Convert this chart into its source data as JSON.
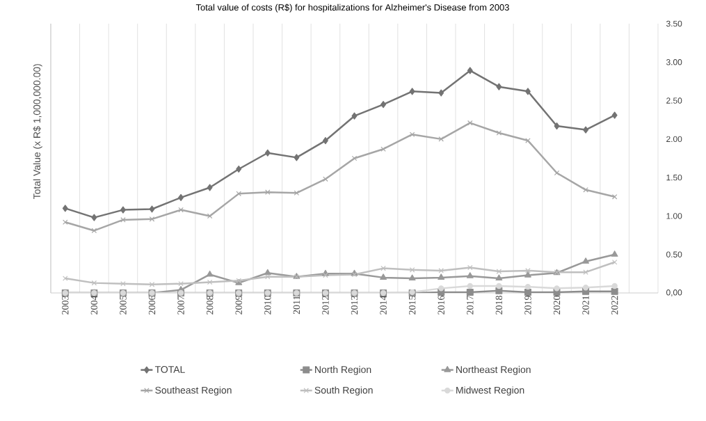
{
  "chart_data": {
    "type": "line",
    "title": "Total value of costs (R$) for hospitalizations for Alzheimer's Disease from 2003",
    "ylabel": "Total Value (x R$ 1,000,000.00)",
    "categories": [
      "2003",
      "2004",
      "2005",
      "2006",
      "2007",
      "2008",
      "2009",
      "2010",
      "2011",
      "2012",
      "2013",
      "2014",
      "2015",
      "2016",
      "2017",
      "2018",
      "2019",
      "2020",
      "2021",
      "2022"
    ],
    "series": [
      {
        "name": "TOTAL",
        "color": "#737373",
        "marker": "diamond",
        "values": [
          1.1,
          0.98,
          1.08,
          1.09,
          1.24,
          1.37,
          1.61,
          1.82,
          1.76,
          1.98,
          2.3,
          2.45,
          2.62,
          2.6,
          2.89,
          2.68,
          2.62,
          2.17,
          2.12,
          2.31
        ]
      },
      {
        "name": "North Region",
        "color": "#8c8c8c",
        "marker": "square",
        "values": [
          0,
          0,
          0,
          0,
          0,
          0,
          0,
          0,
          0,
          0,
          0,
          0,
          0,
          0.01,
          0.01,
          0.03,
          0.01,
          0.01,
          0.02,
          0.02
        ]
      },
      {
        "name": "Northeast Region",
        "color": "#999999",
        "marker": "triangle",
        "values": [
          0,
          0,
          0,
          0,
          0.04,
          0.24,
          0.13,
          0.26,
          0.21,
          0.25,
          0.25,
          0.2,
          0.19,
          0.2,
          0.22,
          0.19,
          0.23,
          0.26,
          0.41,
          0.5
        ]
      },
      {
        "name": "Southeast Region",
        "color": "#a6a6a6",
        "marker": "cross",
        "values": [
          0.92,
          0.81,
          0.95,
          0.96,
          1.08,
          1.0,
          1.29,
          1.31,
          1.3,
          1.48,
          1.75,
          1.87,
          2.06,
          2.0,
          2.21,
          2.08,
          1.98,
          1.56,
          1.34,
          1.25
        ]
      },
      {
        "name": "South Region",
        "color": "#bfbfbf",
        "marker": "cross",
        "values": [
          0.19,
          0.13,
          0.12,
          0.11,
          0.12,
          0.14,
          0.16,
          0.21,
          0.21,
          0.23,
          0.24,
          0.32,
          0.3,
          0.29,
          0.33,
          0.28,
          0.29,
          0.27,
          0.27,
          0.4
        ]
      },
      {
        "name": "Midwest Region",
        "color": "#d9d9d9",
        "marker": "circle",
        "values": [
          0,
          0,
          0,
          0,
          0,
          0,
          0,
          0,
          0,
          0,
          0,
          0,
          0.01,
          0.06,
          0.09,
          0.09,
          0.08,
          0.06,
          0.07,
          0.09
        ]
      }
    ],
    "ylim": [
      0,
      3.5
    ],
    "yticks": [
      {
        "value": 0,
        "label": "0,00"
      },
      {
        "value": 0.5,
        "label": "0.50"
      },
      {
        "value": 1,
        "label": "1.00"
      },
      {
        "value": 1.5,
        "label": "1.50"
      },
      {
        "value": 2,
        "label": "2.00"
      },
      {
        "value": 2.5,
        "label": "2.50"
      },
      {
        "value": 3,
        "label": "3.00"
      },
      {
        "value": 3.5,
        "label": "3.50"
      }
    ],
    "grid": "x",
    "legend": "bottom",
    "line_style": "solid"
  }
}
